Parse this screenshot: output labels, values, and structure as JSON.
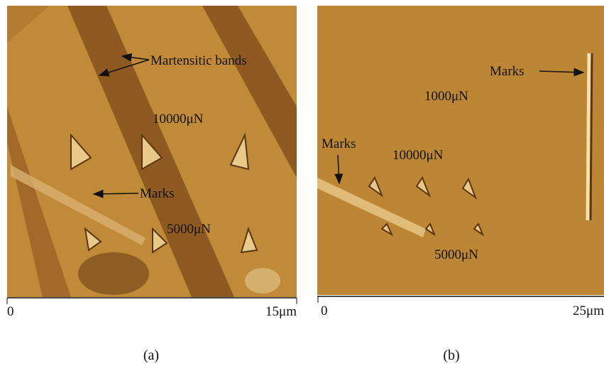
{
  "panel_a": {
    "annotations": [
      "Martensitic bands",
      "10000μN",
      "Marks",
      "5000μN"
    ],
    "scale": [
      "0",
      "15μm"
    ],
    "caption": "(a)"
  },
  "panel_b": {
    "annotations": [
      "Marks",
      "1000μN",
      "Marks",
      "10000μN",
      "5000μN"
    ],
    "scale": [
      "0",
      "25μm"
    ],
    "caption": "(b)"
  }
}
